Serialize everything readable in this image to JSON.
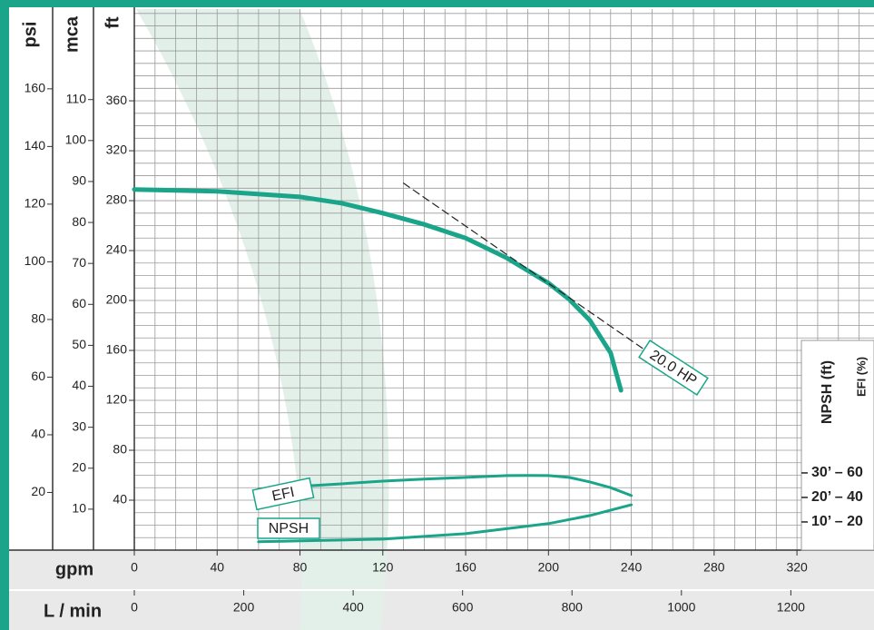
{
  "chart_data": {
    "type": "line",
    "x_axes": [
      {
        "label": "gpm",
        "xlim": [
          0,
          357.2
        ],
        "xticks": [
          0,
          40,
          80,
          120,
          160,
          200,
          240,
          280,
          320
        ]
      },
      {
        "label": "L / min",
        "xlim": [
          0,
          1352
        ],
        "xticks": [
          0,
          200,
          400,
          600,
          800,
          1000,
          1200
        ]
      }
    ],
    "y_axes": [
      {
        "label": "psi",
        "ylim": [
          0,
          187.66
        ],
        "yticks": [
          20,
          40,
          60,
          80,
          100,
          120,
          140,
          160
        ]
      },
      {
        "label": "mca",
        "ylim": [
          0,
          132.1
        ],
        "yticks": [
          10,
          20,
          30,
          40,
          50,
          60,
          70,
          80,
          90,
          100,
          110
        ]
      },
      {
        "label": "ft",
        "ylim": [
          0,
          433.5
        ],
        "yticks": [
          40,
          80,
          120,
          160,
          200,
          240,
          280,
          320,
          360
        ]
      }
    ],
    "y2": {
      "labels": [
        "NPSH (ft)",
        "EFI (%)"
      ],
      "y2lim": [
        -3,
        438.5
      ],
      "y2ticks": [
        {
          "value": 20,
          "label": "10’ – 20"
        },
        {
          "value": 40,
          "label": "20’ – 40"
        },
        {
          "value": 60,
          "label": "30’ – 60"
        }
      ]
    },
    "npsh_lim": [
      -1.5,
      219.25
    ],
    "minor_grid": {
      "x": 10,
      "y": 10
    },
    "series": [
      {
        "color": "#1aa58a",
        "x": [
          0,
          40,
          80,
          100,
          120,
          140,
          160,
          180,
          200,
          210,
          220,
          230,
          235
        ],
        "values": [
          289,
          287.5,
          283,
          278,
          270,
          261,
          250,
          234,
          214,
          201,
          184,
          158,
          128
        ]
      },
      {
        "name": "20.0 HP",
        "color": "#222222",
        "dashed": true,
        "x": [
          130,
          246
        ],
        "values": [
          294,
          161
        ]
      },
      {
        "name": "EFI",
        "color": "#1aa58a",
        "axis": "y2",
        "x": [
          60,
          80,
          100,
          120,
          140,
          160,
          180,
          190,
          200,
          210,
          220,
          230,
          240
        ],
        "values": [
          46.7,
          49,
          51.1,
          53.3,
          55,
          56.3,
          57.8,
          58,
          57.8,
          56.3,
          52.6,
          48,
          41.5
        ]
      },
      {
        "name": "NPSH",
        "color": "#1aa58a",
        "axis": "npsh",
        "x": [
          60,
          120,
          160,
          200,
          220,
          240
        ],
        "values": [
          1.9,
          3,
          5.2,
          9.3,
          12.6,
          17
        ]
      }
    ]
  }
}
